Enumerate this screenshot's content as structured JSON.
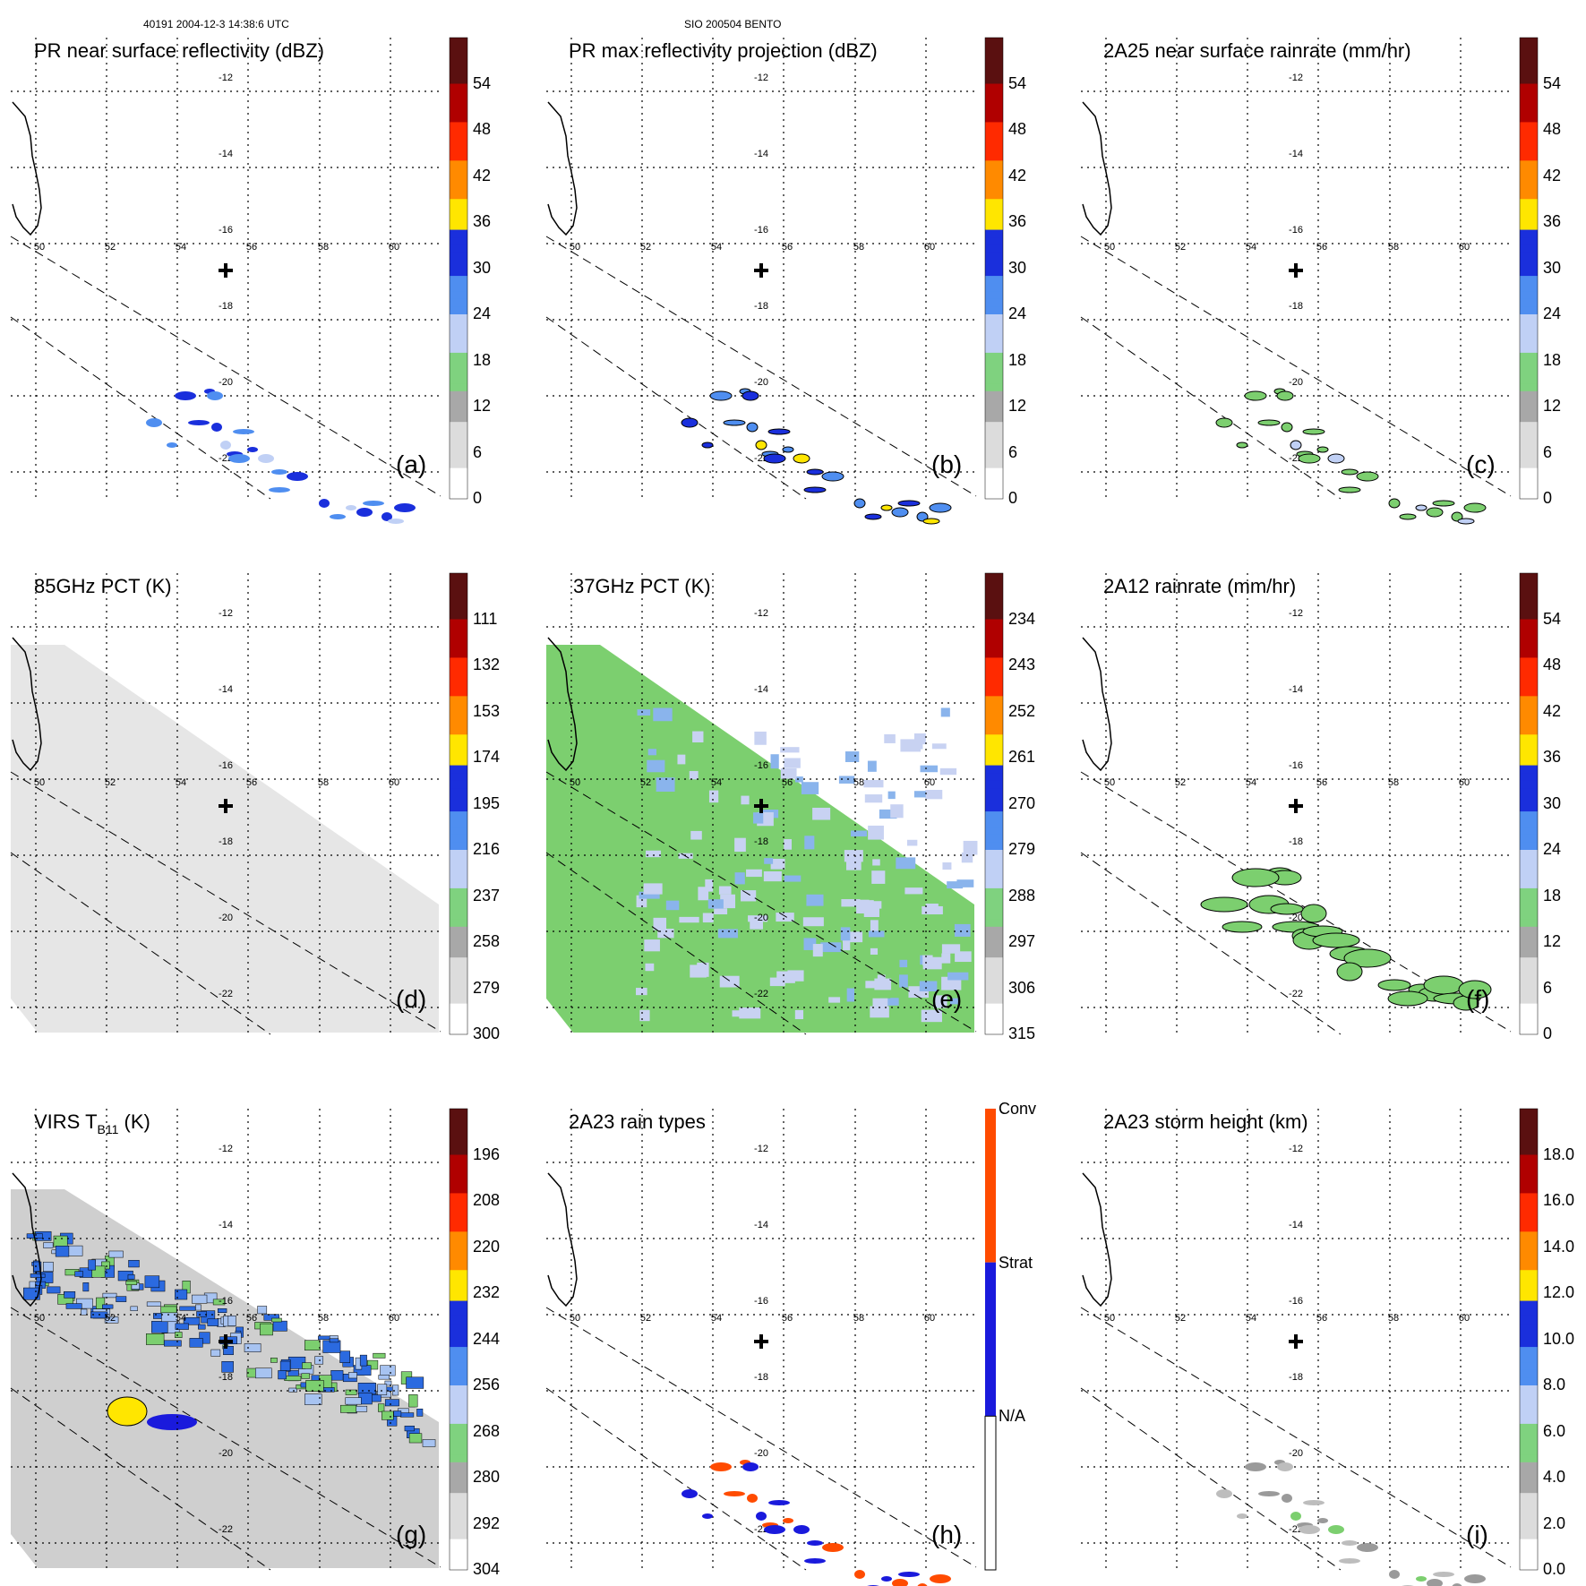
{
  "header": {
    "left": "40191 2004-12-3 14:38:6 UTC",
    "center": "SIO 200504 BENTO"
  },
  "map": {
    "lon_labels": [
      "50",
      "52",
      "54",
      "56",
      "58",
      "60"
    ],
    "lat_labels": [
      "-12",
      "-14",
      "-16",
      "-18",
      "-20",
      "-22"
    ]
  },
  "panels": [
    {
      "title": "PR near surface reflectivity (dBZ)",
      "label": "(a)",
      "ticks": [
        "54",
        "48",
        "42",
        "36",
        "30",
        "24",
        "18",
        "12",
        "6",
        "0"
      ]
    },
    {
      "title": "PR max reflectivity projection (dBZ)",
      "label": "(b)",
      "ticks": [
        "54",
        "48",
        "42",
        "36",
        "30",
        "24",
        "18",
        "12",
        "6",
        "0"
      ]
    },
    {
      "title": "2A25 near surface rainrate (mm/hr)",
      "label": "(c)",
      "ticks": [
        "54",
        "48",
        "42",
        "36",
        "30",
        "24",
        "18",
        "12",
        "6",
        "0"
      ]
    },
    {
      "title": "85GHz PCT (K)",
      "label": "(d)",
      "ticks": [
        "111",
        "132",
        "153",
        "174",
        "195",
        "216",
        "237",
        "258",
        "279",
        "300"
      ]
    },
    {
      "title": "37GHz PCT (K)",
      "label": "(e)",
      "ticks": [
        "234",
        "243",
        "252",
        "261",
        "270",
        "279",
        "288",
        "297",
        "306",
        "315"
      ]
    },
    {
      "title": "2A12 rainrate (mm/hr)",
      "label": "(f)",
      "ticks": [
        "54",
        "48",
        "42",
        "36",
        "30",
        "24",
        "18",
        "12",
        "6",
        "0"
      ]
    },
    {
      "title_main": "VIRS T",
      "title_sub": "B11",
      "title_end": " (K)",
      "label": "(g)",
      "ticks": [
        "196",
        "208",
        "220",
        "232",
        "244",
        "256",
        "268",
        "280",
        "292",
        "304"
      ]
    },
    {
      "title": "2A23 rain types",
      "label": "(h)",
      "ticks": [
        "Conv",
        "Strat",
        "N/A"
      ]
    },
    {
      "title": "2A23 storm height (km)",
      "label": "(i)",
      "ticks": [
        "18.0",
        "16.0",
        "14.0",
        "12.0",
        "10.0",
        "8.0",
        "6.0",
        "4.0",
        "2.0",
        "0.0"
      ]
    }
  ],
  "colors": {
    "scale": [
      "#ffffff",
      "#dcdcdc",
      "#a8a8a8",
      "#7fd27f",
      "#c0d0f5",
      "#4f8ef0",
      "#1a2fdc",
      "#ffe600",
      "#ff8a00",
      "#ff2a00",
      "#b00000",
      "#5a1010"
    ],
    "conv": "#ff4b00",
    "strat": "#1a1adc",
    "na": "#ffffff"
  }
}
